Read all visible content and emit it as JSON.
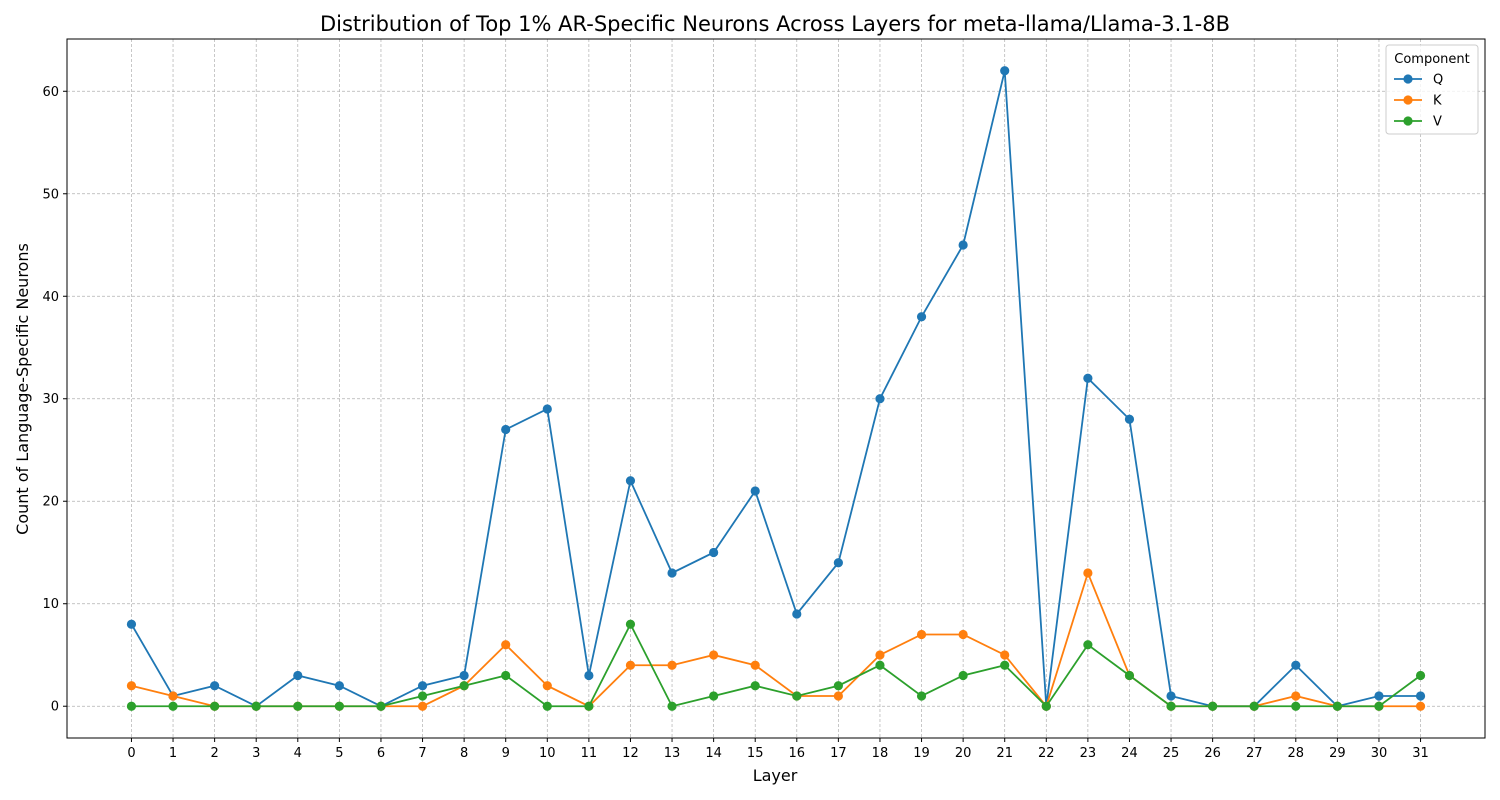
{
  "chart_data": {
    "type": "line",
    "title": "Distribution of Top 1% AR-Specific Neurons Across Layers for meta-llama/Llama-3.1-8B",
    "xlabel": "Layer",
    "ylabel": "Count of Language-Specific Neurons",
    "x": [
      0,
      1,
      2,
      3,
      4,
      5,
      6,
      7,
      8,
      9,
      10,
      11,
      12,
      13,
      14,
      15,
      16,
      17,
      18,
      19,
      20,
      21,
      22,
      23,
      24,
      25,
      26,
      27,
      28,
      29,
      30,
      31
    ],
    "xlim": [
      -1.55,
      32.55
    ],
    "ylim": [
      -3.1,
      65.1
    ],
    "yticks": [
      0,
      10,
      20,
      30,
      40,
      50,
      60
    ],
    "grid": true,
    "legend": {
      "title": "Component",
      "placement": "top-right"
    },
    "series": [
      {
        "name": "Q",
        "color": "#1f77b4",
        "values": [
          8,
          1,
          2,
          0,
          3,
          2,
          0,
          2,
          3,
          27,
          29,
          3,
          22,
          13,
          15,
          21,
          9,
          14,
          30,
          38,
          45,
          62,
          0,
          32,
          28,
          1,
          0,
          0,
          4,
          0,
          1,
          1
        ]
      },
      {
        "name": "K",
        "color": "#ff7f0e",
        "values": [
          2,
          1,
          0,
          0,
          0,
          0,
          0,
          0,
          2,
          6,
          2,
          0,
          4,
          4,
          5,
          4,
          1,
          1,
          5,
          7,
          7,
          5,
          0,
          13,
          3,
          0,
          0,
          0,
          1,
          0,
          0,
          0
        ]
      },
      {
        "name": "V",
        "color": "#2ca02c",
        "values": [
          0,
          0,
          0,
          0,
          0,
          0,
          0,
          1,
          2,
          3,
          0,
          0,
          8,
          0,
          1,
          2,
          1,
          2,
          4,
          1,
          3,
          4,
          0,
          6,
          3,
          0,
          0,
          0,
          0,
          0,
          0,
          3
        ]
      }
    ]
  }
}
